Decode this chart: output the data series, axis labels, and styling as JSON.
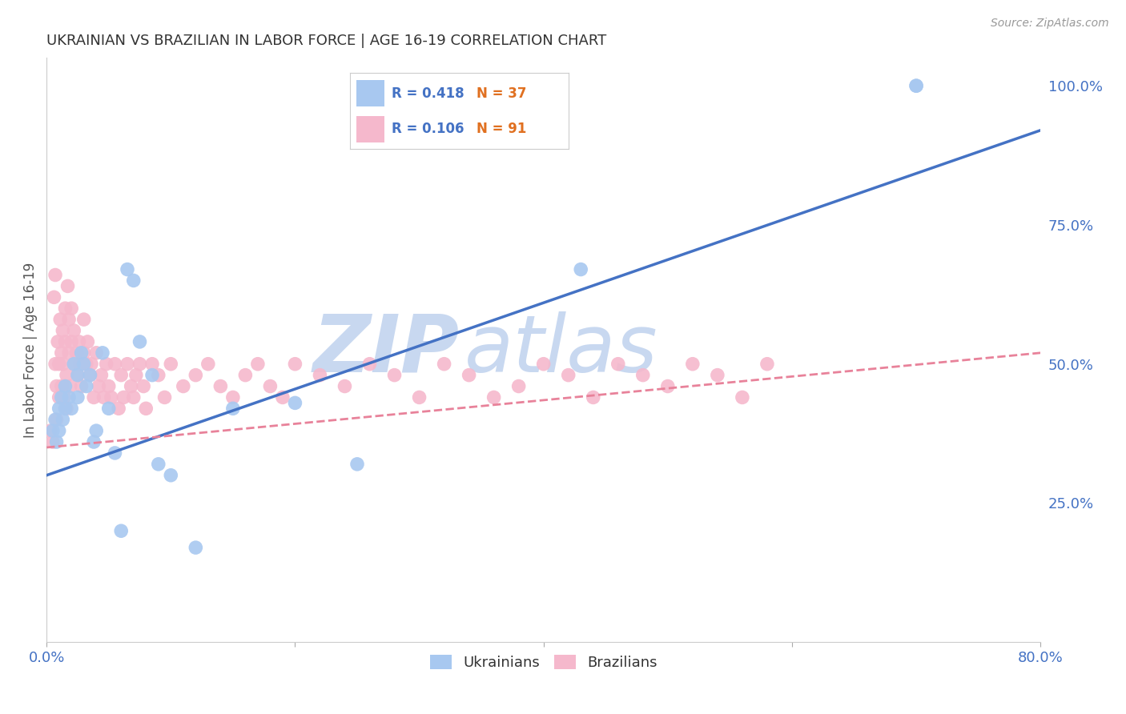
{
  "title": "UKRAINIAN VS BRAZILIAN IN LABOR FORCE | AGE 16-19 CORRELATION CHART",
  "source": "Source: ZipAtlas.com",
  "ylabel": "In Labor Force | Age 16-19",
  "xlim": [
    0.0,
    0.8
  ],
  "ylim": [
    0.0,
    1.05
  ],
  "grid_color": "#cccccc",
  "background_color": "#ffffff",
  "ukrainian_color": "#a8c8f0",
  "brazilian_color": "#f5b8cc",
  "ukrainian_line_color": "#4472c4",
  "brazilian_line_color": "#e8829a",
  "title_color": "#333333",
  "axis_color": "#4472c4",
  "legend_R_color": "#4472c4",
  "legend_N_color": "#e07020",
  "legend_R_ukr": "R = 0.418",
  "legend_N_ukr": "N = 37",
  "legend_R_bra": "R = 0.106",
  "legend_N_bra": "N = 91",
  "watermark_zip": "ZIP",
  "watermark_atlas": "atlas",
  "watermark_color": "#c8d8f0",
  "ukr_line_x0": 0.0,
  "ukr_line_y0": 0.3,
  "ukr_line_x1": 0.8,
  "ukr_line_y1": 0.92,
  "bra_line_x0": 0.0,
  "bra_line_y0": 0.35,
  "bra_line_x1": 0.8,
  "bra_line_y1": 0.52,
  "ukr_x": [
    0.005,
    0.007,
    0.008,
    0.01,
    0.01,
    0.012,
    0.013,
    0.015,
    0.015,
    0.018,
    0.02,
    0.022,
    0.025,
    0.025,
    0.028,
    0.03,
    0.032,
    0.035,
    0.038,
    0.04,
    0.045,
    0.05,
    0.055,
    0.06,
    0.065,
    0.07,
    0.075,
    0.085,
    0.09,
    0.1,
    0.12,
    0.15,
    0.2,
    0.25,
    0.43,
    0.7,
    0.7
  ],
  "ukr_y": [
    0.38,
    0.4,
    0.36,
    0.42,
    0.38,
    0.44,
    0.4,
    0.42,
    0.46,
    0.44,
    0.42,
    0.5,
    0.48,
    0.44,
    0.52,
    0.5,
    0.46,
    0.48,
    0.36,
    0.38,
    0.52,
    0.42,
    0.34,
    0.2,
    0.67,
    0.65,
    0.54,
    0.48,
    0.32,
    0.3,
    0.17,
    0.42,
    0.43,
    0.32,
    0.67,
    1.0,
    1.0
  ],
  "bra_x": [
    0.003,
    0.005,
    0.006,
    0.007,
    0.007,
    0.008,
    0.008,
    0.009,
    0.01,
    0.01,
    0.011,
    0.012,
    0.012,
    0.013,
    0.013,
    0.014,
    0.015,
    0.015,
    0.016,
    0.016,
    0.017,
    0.018,
    0.018,
    0.019,
    0.02,
    0.02,
    0.022,
    0.022,
    0.024,
    0.025,
    0.026,
    0.027,
    0.028,
    0.03,
    0.03,
    0.032,
    0.033,
    0.035,
    0.036,
    0.038,
    0.04,
    0.042,
    0.044,
    0.046,
    0.048,
    0.05,
    0.052,
    0.055,
    0.058,
    0.06,
    0.062,
    0.065,
    0.068,
    0.07,
    0.072,
    0.075,
    0.078,
    0.08,
    0.085,
    0.09,
    0.095,
    0.1,
    0.11,
    0.12,
    0.13,
    0.14,
    0.15,
    0.16,
    0.17,
    0.18,
    0.19,
    0.2,
    0.22,
    0.24,
    0.26,
    0.28,
    0.3,
    0.32,
    0.34,
    0.36,
    0.38,
    0.4,
    0.42,
    0.44,
    0.46,
    0.48,
    0.5,
    0.52,
    0.54,
    0.56,
    0.58
  ],
  "bra_y": [
    0.38,
    0.36,
    0.62,
    0.66,
    0.5,
    0.46,
    0.4,
    0.54,
    0.5,
    0.44,
    0.58,
    0.52,
    0.46,
    0.56,
    0.5,
    0.44,
    0.6,
    0.54,
    0.48,
    0.42,
    0.64,
    0.58,
    0.52,
    0.46,
    0.6,
    0.54,
    0.56,
    0.5,
    0.52,
    0.48,
    0.54,
    0.5,
    0.46,
    0.58,
    0.52,
    0.5,
    0.54,
    0.48,
    0.5,
    0.44,
    0.52,
    0.46,
    0.48,
    0.44,
    0.5,
    0.46,
    0.44,
    0.5,
    0.42,
    0.48,
    0.44,
    0.5,
    0.46,
    0.44,
    0.48,
    0.5,
    0.46,
    0.42,
    0.5,
    0.48,
    0.44,
    0.5,
    0.46,
    0.48,
    0.5,
    0.46,
    0.44,
    0.48,
    0.5,
    0.46,
    0.44,
    0.5,
    0.48,
    0.46,
    0.5,
    0.48,
    0.44,
    0.5,
    0.48,
    0.44,
    0.46,
    0.5,
    0.48,
    0.44,
    0.5,
    0.48,
    0.46,
    0.5,
    0.48,
    0.44,
    0.5
  ]
}
